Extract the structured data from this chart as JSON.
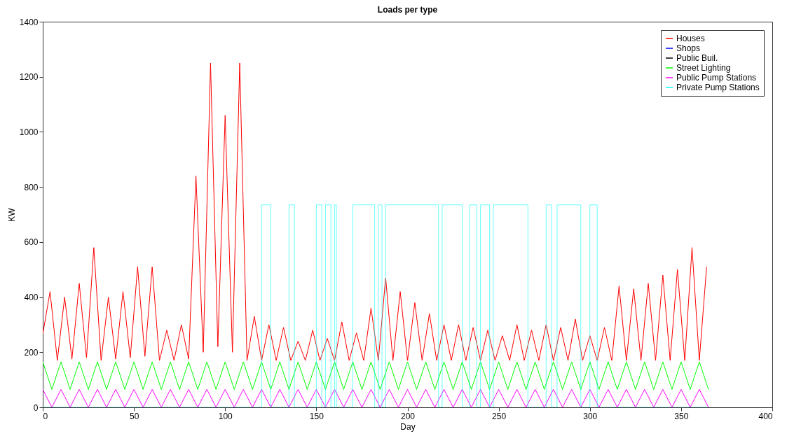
{
  "chart_data": {
    "type": "line",
    "title": "Loads per type",
    "xlabel": "Day",
    "ylabel": "KW",
    "xlim": [
      0,
      400
    ],
    "xticks": [
      0,
      50,
      100,
      150,
      200,
      250,
      300,
      350,
      400
    ],
    "ylim": [
      0,
      1400
    ],
    "yticks": [
      0,
      200,
      400,
      600,
      800,
      1000,
      1200,
      1400
    ],
    "grid": false,
    "legend": "top right",
    "line_style": "solid",
    "marker": "none",
    "series": [
      {
        "name": "Houses",
        "color": "#ff0000",
        "x": [
          0,
          4,
          8,
          12,
          16,
          20,
          24,
          28,
          32,
          36,
          40,
          44,
          48,
          52,
          56,
          60,
          64,
          68,
          72,
          76,
          80,
          84,
          88,
          92,
          96,
          100,
          104,
          108,
          112,
          116,
          120,
          124,
          128,
          132,
          136,
          140,
          144,
          148,
          152,
          156,
          160,
          164,
          168,
          172,
          176,
          180,
          184,
          188,
          192,
          196,
          200,
          204,
          208,
          212,
          216,
          220,
          224,
          228,
          232,
          236,
          240,
          244,
          248,
          252,
          256,
          260,
          264,
          268,
          272,
          276,
          280,
          284,
          288,
          292,
          296,
          300,
          304,
          308,
          312,
          316,
          320,
          324,
          328,
          332,
          336,
          340,
          344,
          348,
          352,
          356,
          360,
          364
        ],
        "values": [
          265,
          420,
          170,
          400,
          175,
          450,
          180,
          580,
          170,
          400,
          175,
          420,
          180,
          510,
          185,
          510,
          170,
          280,
          170,
          300,
          175,
          840,
          200,
          1250,
          220,
          1060,
          200,
          1250,
          170,
          330,
          170,
          300,
          170,
          290,
          170,
          240,
          170,
          280,
          170,
          250,
          170,
          310,
          170,
          270,
          170,
          360,
          170,
          470,
          170,
          420,
          170,
          380,
          170,
          340,
          170,
          300,
          170,
          300,
          170,
          290,
          170,
          280,
          170,
          260,
          170,
          300,
          170,
          280,
          170,
          300,
          170,
          290,
          170,
          320,
          170,
          260,
          170,
          290,
          170,
          440,
          170,
          430,
          170,
          450,
          170,
          480,
          170,
          500,
          170,
          580,
          170,
          510
        ]
      },
      {
        "name": "Shops",
        "color": "#0000ff"
      },
      {
        "name": "Public Buil.",
        "color": "#000000"
      },
      {
        "name": "Street Lighting",
        "color": "#00ff00",
        "x": [
          0,
          5,
          10,
          15,
          20,
          25,
          30,
          35,
          40,
          45,
          50,
          55,
          60,
          65,
          70,
          75,
          80,
          85,
          90,
          95,
          100,
          105,
          110,
          115,
          120,
          125,
          130,
          135,
          140,
          145,
          150,
          155,
          160,
          165,
          170,
          175,
          180,
          185,
          190,
          195,
          200,
          205,
          210,
          215,
          220,
          225,
          230,
          235,
          240,
          245,
          250,
          255,
          260,
          265,
          270,
          275,
          280,
          285,
          290,
          295,
          300,
          305,
          310,
          315,
          320,
          325,
          330,
          335,
          340,
          345,
          350,
          355,
          360,
          365
        ],
        "values": [
          165,
          65,
          165,
          65,
          165,
          65,
          165,
          65,
          165,
          65,
          165,
          65,
          165,
          65,
          165,
          65,
          165,
          65,
          165,
          65,
          165,
          65,
          165,
          65,
          165,
          65,
          165,
          65,
          165,
          65,
          165,
          65,
          165,
          65,
          165,
          65,
          165,
          65,
          165,
          65,
          165,
          65,
          165,
          65,
          165,
          65,
          165,
          65,
          165,
          65,
          165,
          65,
          165,
          65,
          165,
          65,
          165,
          65,
          165,
          65,
          165,
          65,
          165,
          65,
          165,
          65,
          165,
          65,
          165,
          65,
          165,
          65,
          165,
          65
        ]
      },
      {
        "name": "Public Pump Stations",
        "color": "#ff00ff",
        "x": [
          0,
          5,
          10,
          15,
          20,
          25,
          30,
          35,
          40,
          45,
          50,
          55,
          60,
          65,
          70,
          75,
          80,
          85,
          90,
          95,
          100,
          105,
          110,
          115,
          120,
          125,
          130,
          135,
          140,
          145,
          150,
          155,
          160,
          165,
          170,
          175,
          180,
          185,
          190,
          195,
          200,
          205,
          210,
          215,
          220,
          225,
          230,
          235,
          240,
          245,
          250,
          255,
          260,
          265,
          270,
          275,
          280,
          285,
          290,
          295,
          300,
          305,
          310,
          315,
          320,
          325,
          330,
          335,
          340,
          345,
          350,
          355,
          360,
          365
        ],
        "values": [
          65,
          0,
          65,
          0,
          65,
          0,
          65,
          0,
          65,
          0,
          65,
          0,
          65,
          0,
          65,
          0,
          65,
          0,
          65,
          0,
          65,
          0,
          65,
          0,
          65,
          0,
          65,
          0,
          65,
          0,
          65,
          0,
          65,
          0,
          65,
          0,
          65,
          0,
          65,
          0,
          65,
          0,
          65,
          0,
          65,
          0,
          65,
          0,
          65,
          0,
          65,
          0,
          65,
          0,
          65,
          0,
          65,
          0,
          65,
          0,
          65,
          0,
          65,
          0,
          65,
          0,
          65,
          0,
          65,
          0,
          65,
          0,
          65,
          0
        ]
      },
      {
        "name": "Private Pump Stations",
        "color": "#00ffff",
        "x": [
          0,
          120,
          120,
          125,
          125,
          135,
          135,
          138,
          138,
          150,
          150,
          153,
          153,
          155,
          155,
          158,
          158,
          160,
          160,
          161,
          161,
          170,
          170,
          182,
          182,
          184,
          184,
          186,
          186,
          188,
          188,
          217,
          217,
          219,
          219,
          230,
          230,
          234,
          234,
          238,
          238,
          240,
          240,
          245,
          245,
          247,
          247,
          266,
          266,
          276,
          276,
          279,
          279,
          282,
          282,
          295,
          295,
          300,
          300,
          304,
          304,
          365
        ],
        "values": [
          0,
          0,
          735,
          735,
          0,
          0,
          735,
          735,
          0,
          0,
          735,
          735,
          0,
          0,
          735,
          735,
          0,
          0,
          735,
          735,
          0,
          0,
          735,
          735,
          0,
          0,
          735,
          735,
          0,
          0,
          735,
          735,
          0,
          0,
          735,
          735,
          0,
          0,
          735,
          735,
          0,
          0,
          735,
          735,
          0,
          0,
          735,
          735,
          0,
          0,
          735,
          735,
          0,
          0,
          735,
          735,
          0,
          0,
          735,
          735,
          0,
          0
        ]
      }
    ]
  }
}
